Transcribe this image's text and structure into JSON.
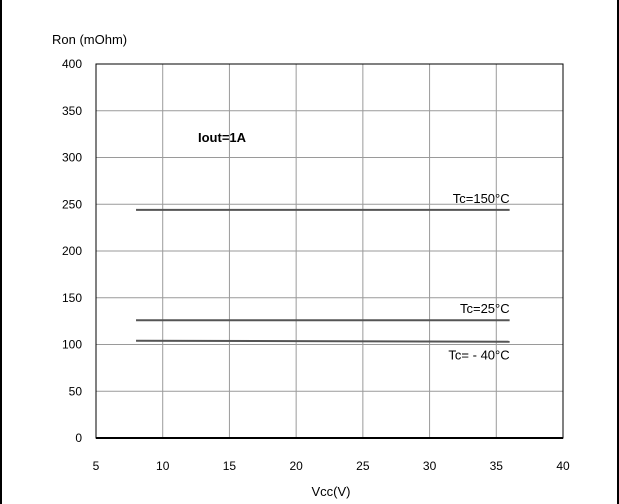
{
  "chart_data": {
    "type": "line",
    "title": "",
    "xlabel": "Vcc(V)",
    "ylabel": "Ron (mOhm)",
    "xlim": [
      5,
      40
    ],
    "ylim": [
      0,
      400
    ],
    "x_ticks": [
      "5",
      "10",
      "15",
      "20",
      "25",
      "30",
      "35",
      "40"
    ],
    "y_ticks": [
      "0",
      "50",
      "100",
      "150",
      "200",
      "250",
      "300",
      "350",
      "400"
    ],
    "grid": true,
    "annotation": "Iout=1A",
    "series": [
      {
        "name": "Tc=150°C",
        "x": [
          8,
          36
        ],
        "y": [
          244,
          244
        ]
      },
      {
        "name": "Tc=25°C",
        "x": [
          8,
          36
        ],
        "y": [
          126,
          126
        ]
      },
      {
        "name": "Tc= - 40°C",
        "x": [
          8,
          36
        ],
        "y": [
          104,
          103
        ]
      }
    ],
    "line_color": "#555555"
  }
}
